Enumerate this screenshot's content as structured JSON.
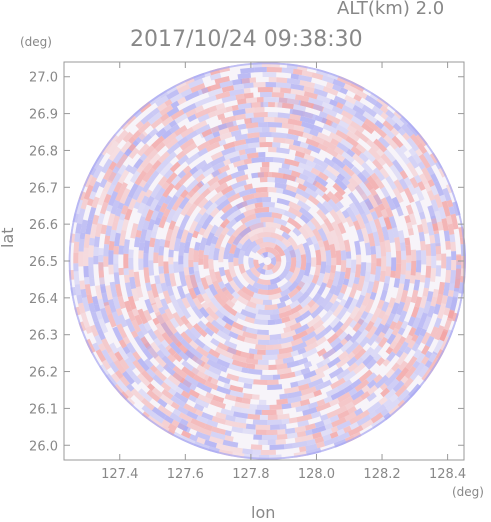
{
  "header": {
    "altitude_label": "ALT(km) 2.0",
    "timestamp": "2017/10/24 09:38:30"
  },
  "chart_data": {
    "type": "heatmap",
    "title": "2017/10/24 09:38:30",
    "subtitle": "ALT(km) 2.0",
    "xlabel": "lon",
    "ylabel": "lat",
    "xunit": "(deg)",
    "yunit": "(deg)",
    "xlim": [
      127.23,
      128.45
    ],
    "ylim": [
      25.96,
      27.04
    ],
    "xticks": [
      "127.4",
      "127.6",
      "127.8",
      "128.0",
      "128.2",
      "128.4"
    ],
    "yticks": [
      "26.0",
      "26.1",
      "26.2",
      "26.3",
      "26.4",
      "26.5",
      "26.6",
      "26.7",
      "26.8",
      "26.9",
      "27.0"
    ],
    "xtick_values": [
      127.4,
      127.6,
      127.8,
      128.0,
      128.2,
      128.4
    ],
    "ytick_values": [
      26.0,
      26.1,
      26.2,
      26.3,
      26.4,
      26.5,
      26.6,
      26.7,
      26.8,
      26.9,
      27.0
    ],
    "center": {
      "lon": 127.85,
      "lat": 26.5
    },
    "colors": {
      "positive": "#f2a0a0",
      "negative": "#a8a8f2",
      "axis": "#999999"
    },
    "grid": false
  }
}
